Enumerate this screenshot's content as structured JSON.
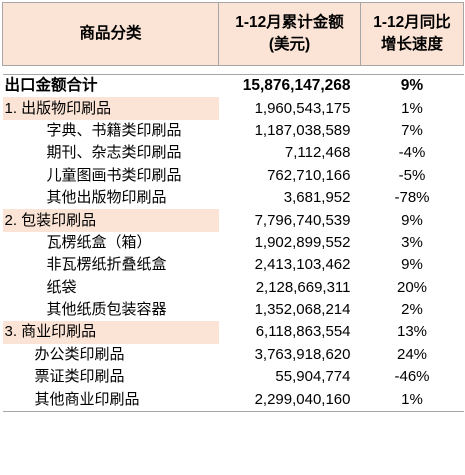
{
  "headers": {
    "category": "商品分类",
    "value_line1": "1-12月累计金额",
    "value_line2": "(美元)",
    "growth_line1": "1-12月同比",
    "growth_line2": "增长速度"
  },
  "rows": [
    {
      "type": "total",
      "label": "出口金额合计",
      "value": "15,876,147,268",
      "growth": "9%"
    },
    {
      "type": "cat",
      "label": "1. 出版物印刷品",
      "value": "1,960,543,175",
      "growth": "1%"
    },
    {
      "type": "sub",
      "label": "字典、书籍类印刷品",
      "value": "1,187,038,589",
      "growth": "7%"
    },
    {
      "type": "sub",
      "label": "期刊、杂志类印刷品",
      "value": "7,112,468",
      "growth": "-4%"
    },
    {
      "type": "sub",
      "label": "儿童图画书类印刷品",
      "value": "762,710,166",
      "growth": "-5%"
    },
    {
      "type": "sub",
      "label": "其他出版物印刷品",
      "value": "3,681,952",
      "growth": "-78%"
    },
    {
      "type": "cat",
      "label": "2. 包装印刷品",
      "value": "7,796,740,539",
      "growth": "9%"
    },
    {
      "type": "sub",
      "label": "瓦楞纸盒（箱）",
      "value": "1,902,899,552",
      "growth": "3%"
    },
    {
      "type": "sub",
      "label": "非瓦楞纸折叠纸盒",
      "value": "2,413,103,462",
      "growth": "9%"
    },
    {
      "type": "sub",
      "label": "纸袋",
      "value": "2,128,669,311",
      "growth": "20%"
    },
    {
      "type": "sub",
      "label": "其他纸质包装容器",
      "value": "1,352,068,214",
      "growth": "2%"
    },
    {
      "type": "cat",
      "label": "3. 商业印刷品",
      "value": "6,118,863,554",
      "growth": "13%"
    },
    {
      "type": "sub",
      "label": "办公类印刷品",
      "value": "3,763,918,620",
      "growth": "24%"
    },
    {
      "type": "sub",
      "label": "票证类印刷品",
      "value": "55,904,774",
      "growth": "-46%"
    },
    {
      "type": "sub",
      "label": "其他商业印刷品",
      "value": "2,299,040,160",
      "growth": "1%"
    }
  ]
}
